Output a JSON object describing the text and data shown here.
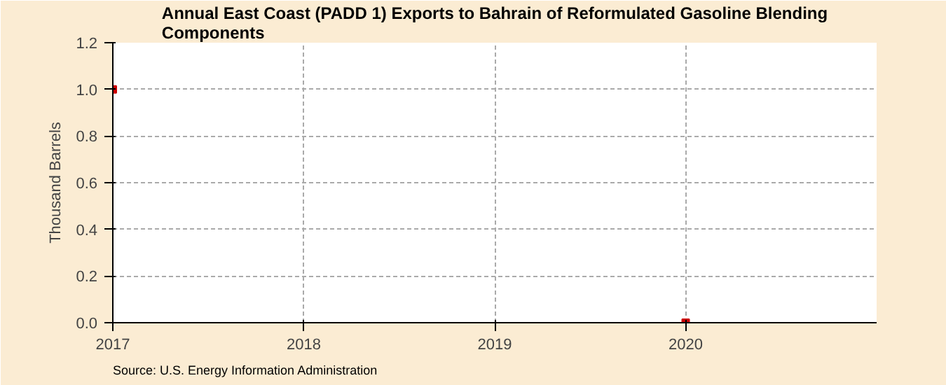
{
  "chart_data": {
    "title": "Annual East Coast (PADD 1) Exports to Bahrain of Reformulated Gasoline Blending Components",
    "ylabel": "Thousand Barrels",
    "x": [
      2017,
      2020
    ],
    "series": [
      {
        "color": "#cc0000",
        "values": [
          1.0,
          0.0
        ]
      }
    ],
    "type": "scatter",
    "xlim": [
      2017,
      2021
    ],
    "xticks": [
      2017,
      2018,
      2019,
      2020
    ],
    "ylim": [
      0,
      1.2
    ],
    "yticks": [
      {
        "value": 0,
        "label": "0.0"
      },
      0.2,
      0.4,
      0.6,
      0.8,
      {
        "value": 1,
        "label": "1.0"
      },
      1.2
    ],
    "grid": true,
    "marker": "square",
    "annotations": [
      "Source: U.S. Energy Information Administration"
    ]
  }
}
